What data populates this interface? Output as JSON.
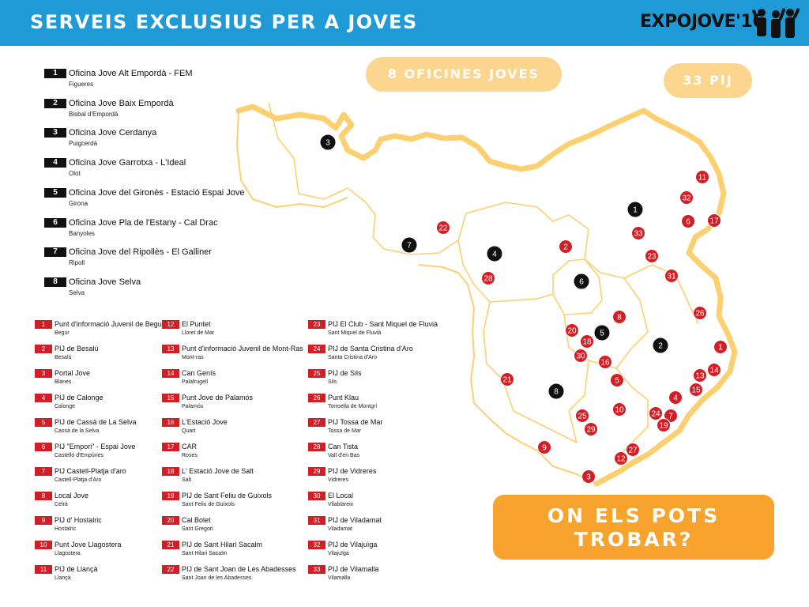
{
  "header": {
    "title": "SERVEIS EXCLUSIUS PER A JOVES",
    "logo_text": "EXPOJOVE'16",
    "background_color": "#1e9ad6"
  },
  "badges": {
    "oficines": "8 OFICINES JOVES",
    "pij": "33 PIJ",
    "cta_line1": "ON ELS POTS",
    "cta_line2": "TROBAR?"
  },
  "oficines": [
    {
      "num": "1",
      "name": "Oficina Jove Alt Empordà - FEM",
      "location": "Figueres"
    },
    {
      "num": "2",
      "name": "Oficina Jove Baix Empordà",
      "location": "Bisbal d'Empordà"
    },
    {
      "num": "3",
      "name": "Oficina Jove Cerdanya",
      "location": "Puigcerdà"
    },
    {
      "num": "4",
      "name": "Oficina Jove Garrotxa - L'Ideal",
      "location": "Olot"
    },
    {
      "num": "5",
      "name": "Oficina Jove del Gironès - Estació Espai Jove",
      "location": "Girona"
    },
    {
      "num": "6",
      "name": "Oficina Jove Pla de l'Estany - Cal Drac",
      "location": "Banyoles"
    },
    {
      "num": "7",
      "name": "Oficina Jove del Ripollès - El Galliner",
      "location": "Ripoll"
    },
    {
      "num": "8",
      "name": "Oficina Jove Selva",
      "location": "Selva"
    }
  ],
  "pij": [
    {
      "num": "1",
      "name": "Punt d'informació Juvenil de Begur",
      "location": "Begur"
    },
    {
      "num": "2",
      "name": "PIJ de Besalú",
      "location": "Besalú"
    },
    {
      "num": "3",
      "name": "Portal Jove",
      "location": "Blanes"
    },
    {
      "num": "4",
      "name": "PIJ de Calonge",
      "location": "Calonge"
    },
    {
      "num": "5",
      "name": "PIJ de Cassà de La Selva",
      "location": "Cassà de la Selva"
    },
    {
      "num": "6",
      "name": "PIJ \"Empori\" - Espai Jove",
      "location": "Castelló d'Empúries"
    },
    {
      "num": "7",
      "name": "PIJ Castell-Platja d'aro",
      "location": "Castell-Platja d'Aro"
    },
    {
      "num": "8",
      "name": "Local Jove",
      "location": "Celrà"
    },
    {
      "num": "9",
      "name": "PIJ d' Hostalric",
      "location": "Hostalric"
    },
    {
      "num": "10",
      "name": "Punt Jove Llagostera",
      "location": "Llagostera"
    },
    {
      "num": "11",
      "name": "PIJ de Llançà",
      "location": "Llançà"
    },
    {
      "num": "12",
      "name": "El Puntet",
      "location": "Lloret de Mar"
    },
    {
      "num": "13",
      "name": "Punt d'informació Juvenil de Mont-Ras",
      "location": "Mont-ras"
    },
    {
      "num": "14",
      "name": "Can Genís",
      "location": "Palafrugell"
    },
    {
      "num": "15",
      "name": "Punt Jove de Palamós",
      "location": "Palamós"
    },
    {
      "num": "16",
      "name": "L'Estació Jove",
      "location": "Quart"
    },
    {
      "num": "17",
      "name": "CAR",
      "location": "Roses"
    },
    {
      "num": "18",
      "name": "L' Estació Jove de Salt",
      "location": "Salt"
    },
    {
      "num": "19",
      "name": "PIJ de Sant Feliu de Guíxols",
      "location": "Sant Feliu de Guíxols"
    },
    {
      "num": "20",
      "name": "Cal Bolet",
      "location": "Sant Gregori"
    },
    {
      "num": "21",
      "name": "PIJ de Sant Hilari Sacalm",
      "location": "Sant Hilari Sacalm"
    },
    {
      "num": "22",
      "name": "PIJ de Sant Joan de Les Abadesses",
      "location": "Sant Joan de les Abadesses"
    },
    {
      "num": "23",
      "name": "PIJ El Club - Sant Miquel de Fluvià",
      "location": "Sant Miquel de Fluvià"
    },
    {
      "num": "24",
      "name": "PIJ de Santa Cristina d'Aro",
      "location": "Santa Cristina d'Aro"
    },
    {
      "num": "25",
      "name": "PIJ de Sils",
      "location": "Sils"
    },
    {
      "num": "26",
      "name": "Punt Klau",
      "location": "Torroella de Montgrí"
    },
    {
      "num": "27",
      "name": "PIJ Tossa de Mar",
      "location": "Tossa de Mar"
    },
    {
      "num": "28",
      "name": "Can Tista",
      "location": "Vall d'en Bas"
    },
    {
      "num": "29",
      "name": "PIJ de Vidreres",
      "location": "Vidreres"
    },
    {
      "num": "30",
      "name": "El Local",
      "location": "Vilablareix"
    },
    {
      "num": "31",
      "name": "PIJ de Viladamat",
      "location": "Viladamat"
    },
    {
      "num": "32",
      "name": "PIJ de Vilajuïga",
      "location": "Vilajuïga"
    },
    {
      "num": "33",
      "name": "PIJ de Vilamalla",
      "location": "Vilamalla"
    }
  ],
  "map": {
    "oficina_markers": [
      "1",
      "2",
      "3",
      "4",
      "5",
      "6",
      "7",
      "8"
    ],
    "pij_markers": [
      "1",
      "2",
      "3",
      "4",
      "5",
      "6",
      "7",
      "8",
      "9",
      "10",
      "11",
      "12",
      "13",
      "14",
      "15",
      "16",
      "17",
      "18",
      "19",
      "20",
      "21",
      "22",
      "23",
      "24",
      "25",
      "26",
      "27",
      "28",
      "29",
      "30",
      "31",
      "32",
      "33"
    ]
  },
  "colors": {
    "oficina_marker": "#111111",
    "pij_marker": "#d41e26",
    "map_border": "#fcd070",
    "badge_light": "#fcd58e",
    "badge_cta": "#f7a32d"
  }
}
